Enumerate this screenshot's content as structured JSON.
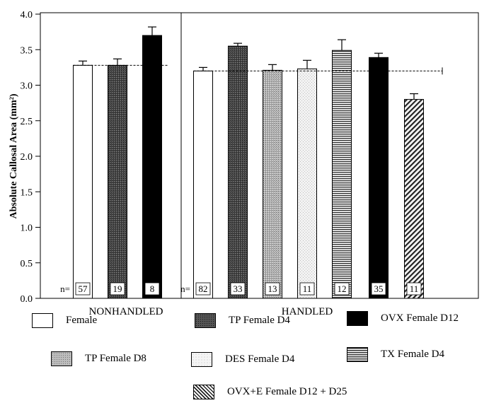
{
  "chart_data": {
    "type": "bar",
    "ylabel": "Absolute Callosal Area (mm²)",
    "ylim": [
      0.0,
      4.0
    ],
    "yticks": [
      "0.0",
      "0.5",
      "1.0",
      "1.5",
      "2.0",
      "2.5",
      "3.0",
      "3.5",
      "4.0"
    ],
    "n_prefix": "n=",
    "groups": [
      {
        "label": "NONHANDLED",
        "reference_line": 3.28,
        "bars": [
          {
            "series": "female",
            "value": 3.28,
            "error": 0.06,
            "n": "57"
          },
          {
            "series": "tp_d4",
            "value": 3.28,
            "error": 0.09,
            "n": "19"
          },
          {
            "series": "ovx_d12",
            "value": 3.7,
            "error": 0.12,
            "n": "8"
          }
        ]
      },
      {
        "label": "HANDLED",
        "reference_line": 3.2,
        "bars": [
          {
            "series": "female",
            "value": 3.2,
            "error": 0.05,
            "n": "82"
          },
          {
            "series": "tp_d4",
            "value": 3.55,
            "error": 0.04,
            "n": "33"
          },
          {
            "series": "tp_d8",
            "value": 3.21,
            "error": 0.08,
            "n": "13"
          },
          {
            "series": "des_d4",
            "value": 3.23,
            "error": 0.12,
            "n": "11"
          },
          {
            "series": "tx_d4",
            "value": 3.49,
            "error": 0.15,
            "n": "12"
          },
          {
            "series": "ovx_d12",
            "value": 3.39,
            "error": 0.06,
            "n": "35"
          },
          {
            "series": "ovxe",
            "value": 2.8,
            "error": 0.08,
            "n": "11"
          }
        ]
      }
    ],
    "series": [
      {
        "key": "female",
        "name": "Female",
        "pattern": "white"
      },
      {
        "key": "tp_d4",
        "name": "TP Female D4",
        "pattern": "dark-stipple"
      },
      {
        "key": "ovx_d12",
        "name": "OVX Female D12",
        "pattern": "black"
      },
      {
        "key": "tp_d8",
        "name": "TP Female D8",
        "pattern": "medium-stipple"
      },
      {
        "key": "des_d4",
        "name": "DES Female D4",
        "pattern": "light-stipple"
      },
      {
        "key": "tx_d4",
        "name": "TX Female D4",
        "pattern": "horizontal-lines"
      },
      {
        "key": "ovxe",
        "name": "OVX+E Female D12 + D25",
        "pattern": "diagonal-hatch"
      }
    ]
  }
}
